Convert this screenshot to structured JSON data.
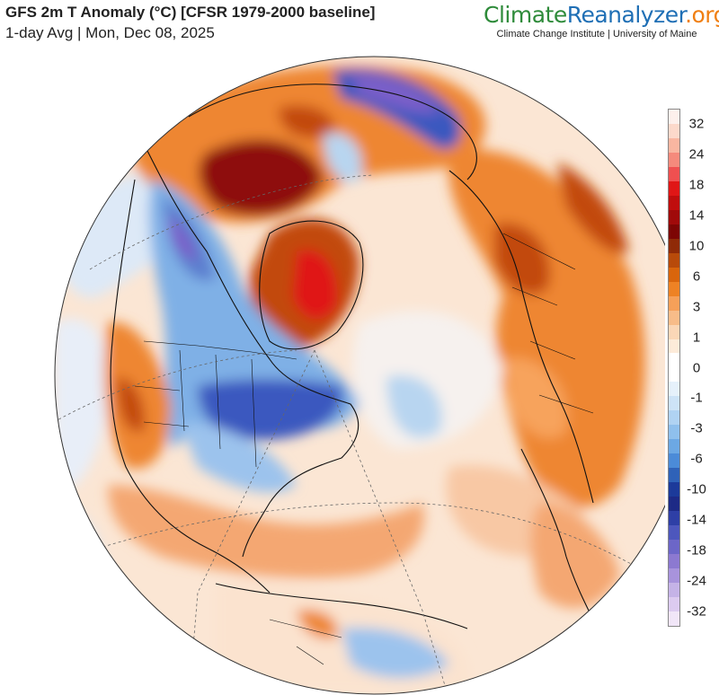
{
  "header": {
    "title": "GFS 2m T Anomaly (°C) [CFSR 1979-2000 baseline]",
    "subtitle": "1-day Avg | Mon, Dec 08, 2025"
  },
  "brand": {
    "part1": "Climate",
    "part2": "Reanalyzer",
    "part3": ".org",
    "color1": "#2e8b3a",
    "color2": "#1f6fb5",
    "color3": "#f07f12",
    "subtitle": "Climate Change Institute | University of Maine"
  },
  "legend": {
    "labels": [
      "32",
      "24",
      "18",
      "14",
      "10",
      "6",
      "3",
      "1",
      "0",
      "-1",
      "-3",
      "-6",
      "-10",
      "-14",
      "-18",
      "-24",
      "-32"
    ],
    "colors": [
      "#fdf0ec",
      "#fcd9cb",
      "#f9b6a1",
      "#f58a7c",
      "#ef5050",
      "#e01616",
      "#c00d0d",
      "#a00a0a",
      "#7d0504",
      "#8f2a07",
      "#b84a0a",
      "#d9650c",
      "#ee8224",
      "#f6a059",
      "#f8bc89",
      "#fbd7b7",
      "#fdebd9",
      "#ffffff",
      "#ffffff",
      "#e6f1fb",
      "#cde3f7",
      "#b0d3f3",
      "#8fc0ed",
      "#6ca8e4",
      "#4b8bd8",
      "#2f62b8",
      "#1c3a9a",
      "#1d2a86",
      "#2e3fa6",
      "#4d57bd",
      "#6c66c8",
      "#8c79d1",
      "#a893dc",
      "#c5b3e7",
      "#dccbf0",
      "#f1e6f8"
    ]
  },
  "map_colors": {
    "ocean_warm": "#f7b585",
    "warm": "#ee8630",
    "hot": "#c24a0f",
    "very_hot": "#8e1108",
    "extreme_hot": "#e01212",
    "neutral": "#fbeee3",
    "cool": "#cfe3f7",
    "cold": "#7fb0e6",
    "very_cold": "#3b59bf",
    "extreme_cold": "#7b5fc9",
    "pale_blue": "#e3effb",
    "border": "#111111"
  }
}
